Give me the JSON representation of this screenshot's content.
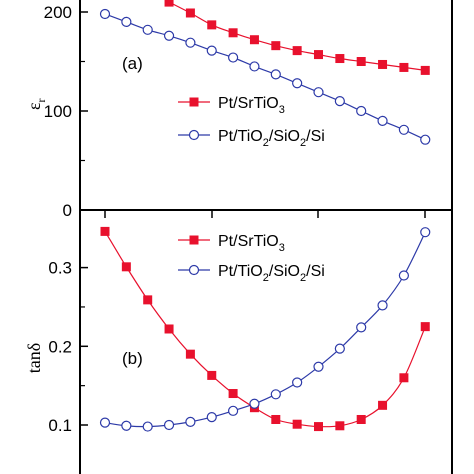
{
  "chart_data": [
    {
      "panel": "(a)",
      "type": "line",
      "ylabel": "ε",
      "ylabel_sub": "r",
      "ylim": [
        0,
        225
      ],
      "yticks": [
        "0",
        "100",
        "200"
      ],
      "x": [
        1,
        2,
        3,
        4,
        5,
        6,
        7,
        8,
        9,
        10,
        11,
        12,
        13,
        14,
        15,
        16
      ],
      "series": [
        {
          "name": "Pt/SrTiO₃",
          "name_parts": [
            "Pt/SrTiO",
            "3",
            ""
          ],
          "marker": "square",
          "color": "#e8112d",
          "values": [
            null,
            null,
            null,
            210,
            199,
            187,
            179,
            172,
            166,
            161,
            157,
            153,
            150,
            147,
            144,
            141
          ]
        },
        {
          "name": "Pt/TiO₂/SiO₂/Si",
          "name_parts": [
            "Pt/TiO",
            "2",
            "/SiO",
            "2",
            "/Si"
          ],
          "marker": "circle",
          "color": "#2d3aa8",
          "values": [
            198,
            190,
            182,
            176,
            169,
            161,
            154,
            145,
            137,
            128,
            119,
            110,
            100,
            90,
            81,
            71
          ]
        }
      ],
      "legend_position": "center-right"
    },
    {
      "panel": "(b)",
      "type": "line",
      "ylabel": "tanδ",
      "ylim": [
        0.07,
        0.36
      ],
      "yticks": [
        "0.1",
        "0.2",
        "0.3"
      ],
      "x": [
        1,
        2,
        3,
        4,
        5,
        6,
        7,
        8,
        9,
        10,
        11,
        12,
        13,
        14,
        15,
        16
      ],
      "series": [
        {
          "name": "Pt/SrTiO₃",
          "name_parts": [
            "Pt/SrTiO",
            "3",
            ""
          ],
          "marker": "square",
          "color": "#e8112d",
          "values": [
            0.346,
            0.301,
            0.259,
            0.222,
            0.19,
            0.163,
            0.14,
            0.122,
            0.107,
            0.101,
            0.098,
            0.099,
            0.107,
            0.125,
            0.16,
            0.225
          ]
        },
        {
          "name": "Pt/TiO₂/SiO₂/Si",
          "name_parts": [
            "Pt/TiO",
            "2",
            "/SiO",
            "2",
            "/Si"
          ],
          "marker": "circle",
          "color": "#2d3aa8",
          "values": [
            0.103,
            0.099,
            0.098,
            0.1,
            0.104,
            0.11,
            0.118,
            0.127,
            0.139,
            0.154,
            0.174,
            0.197,
            0.224,
            0.252,
            0.29,
            0.345
          ]
        }
      ],
      "legend_position": "top-right"
    }
  ]
}
